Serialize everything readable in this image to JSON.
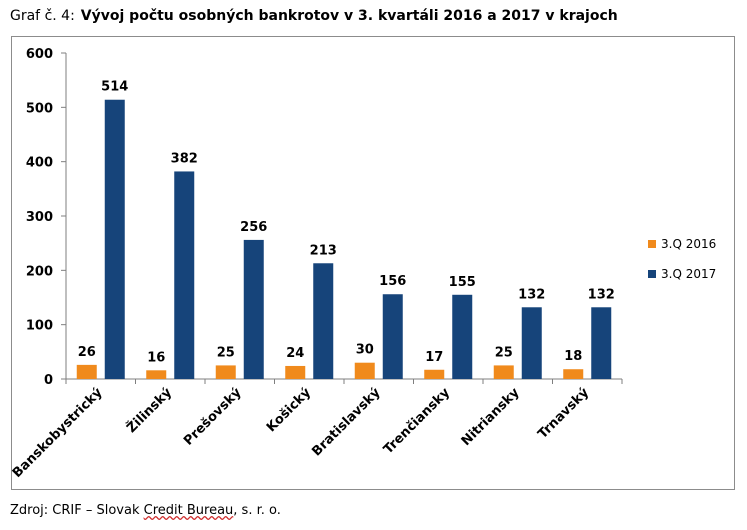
{
  "caption": {
    "label": "Graf č. 4:",
    "title": "Vývoj počtu osobných bankrotov v 3. kvartáli 2016 a 2017 v krajoch"
  },
  "source": {
    "prefix": "Zdroj: CRIF – Slovak ",
    "underlined": "Credit Bureau",
    "suffix": ", s. r. o."
  },
  "colors": {
    "series2016": "#f08a1c",
    "series2017": "#16447a"
  },
  "chart_data": {
    "type": "bar",
    "categories": [
      "Banskobystrický",
      "Žilinský",
      "Prešovský",
      "Košický",
      "Bratislavský",
      "Trenčiansky",
      "Nitriansky",
      "Trnavský"
    ],
    "series": [
      {
        "name": "3.Q 2016",
        "values": [
          26,
          16,
          25,
          24,
          30,
          17,
          25,
          18
        ]
      },
      {
        "name": "3.Q 2017",
        "values": [
          514,
          382,
          256,
          213,
          156,
          155,
          132,
          132
        ]
      }
    ],
    "yticks": [
      0,
      100,
      200,
      300,
      400,
      500,
      600
    ],
    "ylim": [
      0,
      600
    ],
    "legend_position": "right",
    "grid": false
  }
}
